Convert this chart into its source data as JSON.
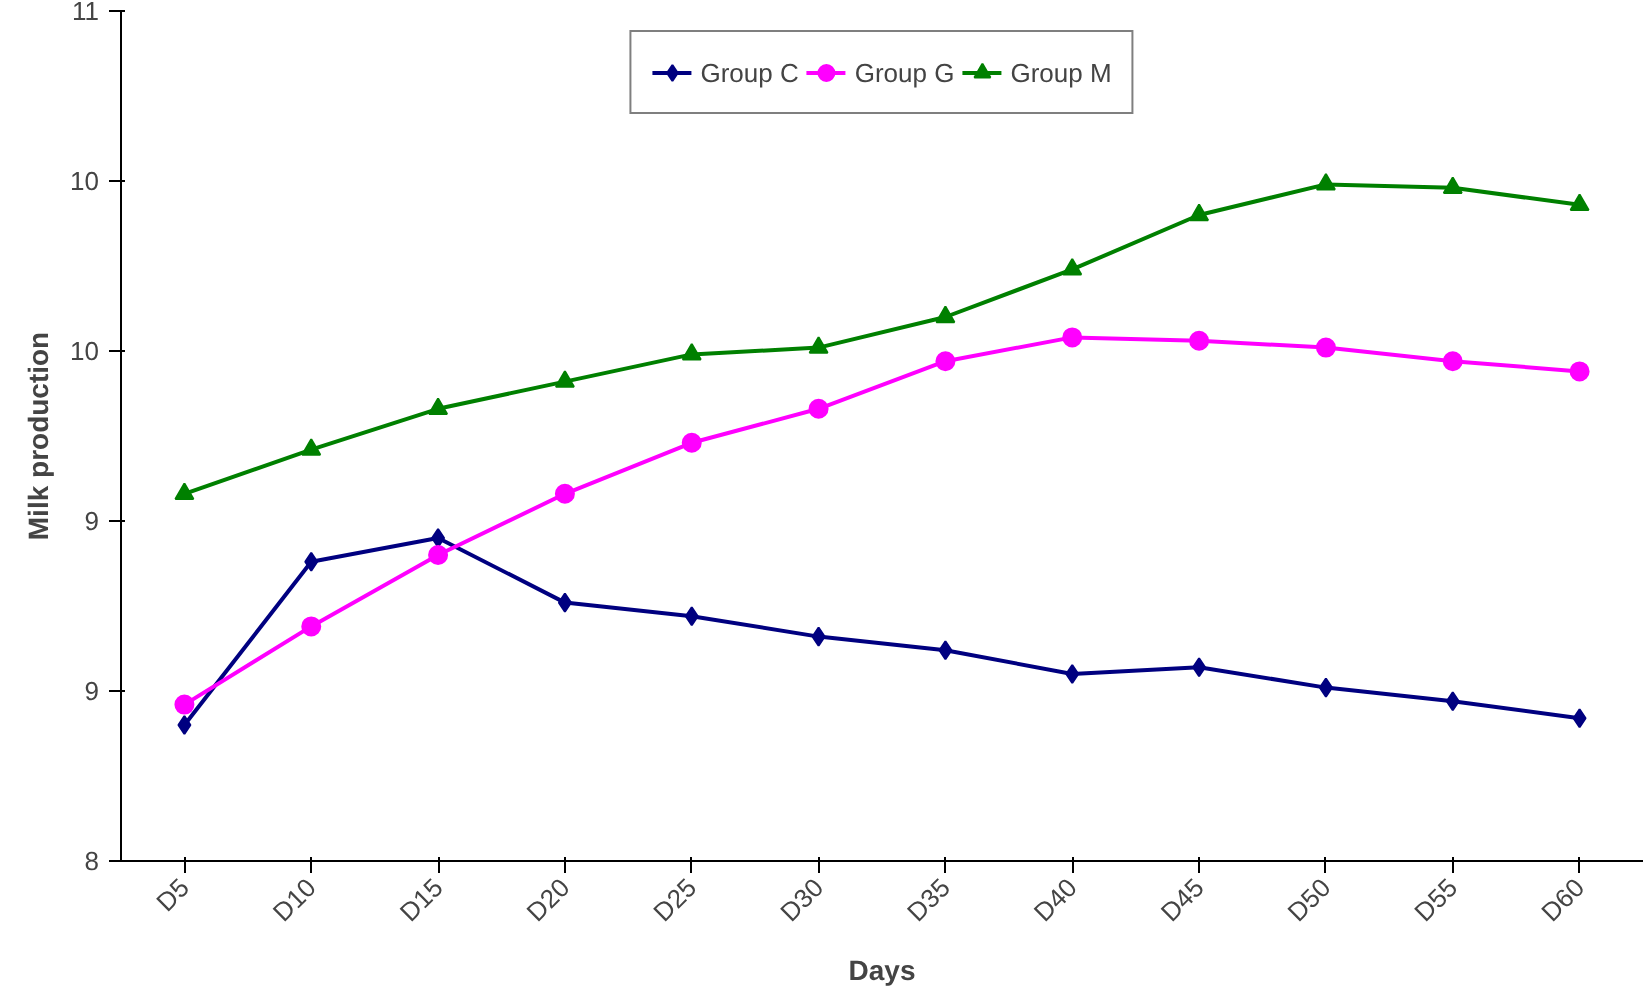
{
  "chart_data": {
    "type": "line",
    "xlabel": "Days",
    "ylabel": "Milk production",
    "categories": [
      "D5",
      "D10",
      "D15",
      "D20",
      "D25",
      "D30",
      "D35",
      "D40",
      "D45",
      "D50",
      "D55",
      "D60"
    ],
    "ylim": [
      8,
      10.5
    ],
    "yticks": [
      8,
      {
        "value": 8.5,
        "label": "9"
      },
      9,
      {
        "value": 9.5,
        "label": "10"
      },
      10,
      {
        "value": 10.5,
        "label": "11"
      }
    ],
    "grid": false,
    "legend": "top",
    "series": [
      {
        "name": "Group C",
        "color": "#000080",
        "marker": "diamond",
        "values": [
          8.4,
          8.88,
          8.95,
          8.76,
          8.72,
          8.66,
          8.62,
          8.55,
          8.57,
          8.51,
          8.47,
          8.42
        ]
      },
      {
        "name": "Group G",
        "color": "#ff00ff",
        "marker": "circle",
        "values": [
          8.46,
          8.69,
          8.9,
          9.08,
          9.23,
          9.33,
          9.47,
          9.54,
          9.53,
          9.51,
          9.47,
          9.44
        ]
      },
      {
        "name": "Group M",
        "color": "#008000",
        "marker": "triangle",
        "values": [
          9.08,
          9.21,
          9.33,
          9.41,
          9.49,
          9.51,
          9.6,
          9.74,
          9.9,
          9.99,
          9.98,
          9.93
        ]
      }
    ]
  }
}
